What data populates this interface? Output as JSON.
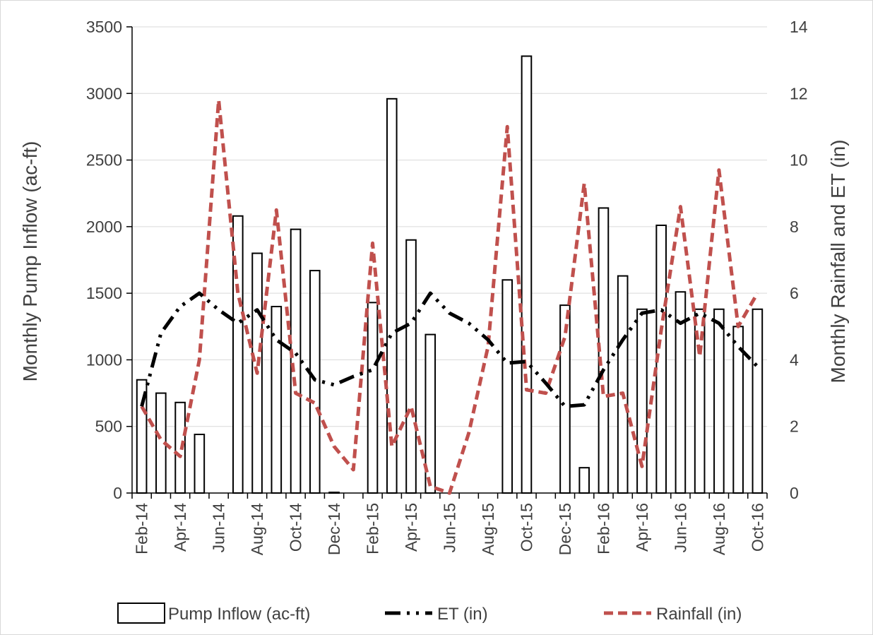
{
  "chart_data": {
    "type": "bar",
    "categories": [
      "Feb-14",
      "Mar-14",
      "Apr-14",
      "May-14",
      "Jun-14",
      "Jul-14",
      "Aug-14",
      "Sep-14",
      "Oct-14",
      "Nov-14",
      "Dec-14",
      "Jan-15",
      "Feb-15",
      "Mar-15",
      "Apr-15",
      "May-15",
      "Jun-15",
      "Jul-15",
      "Aug-15",
      "Sep-15",
      "Oct-15",
      "Nov-15",
      "Dec-15",
      "Jan-16",
      "Feb-16",
      "Mar-16",
      "Apr-16",
      "May-16",
      "Jun-16",
      "Jul-16",
      "Aug-16",
      "Sep-16",
      "Oct-16"
    ],
    "x_tick_labels": [
      "Feb-14",
      "Apr-14",
      "Jun-14",
      "Aug-14",
      "Oct-14",
      "Dec-14",
      "Feb-15",
      "Apr-15",
      "Jun-15",
      "Aug-15",
      "Oct-15",
      "Dec-15",
      "Feb-16",
      "Apr-16",
      "Jun-16",
      "Aug-16",
      "Oct-16"
    ],
    "title": "",
    "ylabel_left": "Monthly Pump Inflow (ac-ft)",
    "ylabel_right": "Monthly Rainfall and ET (in)",
    "ylim_left": [
      0,
      3500
    ],
    "ylim_right": [
      0,
      14
    ],
    "yticks_left": [
      "0",
      "500",
      "1000",
      "1500",
      "2000",
      "2500",
      "3000",
      "3500"
    ],
    "yticks_right": [
      "0",
      "2",
      "4",
      "6",
      "8",
      "10",
      "12",
      "14"
    ],
    "grid": true,
    "legend_position": "bottom",
    "series": [
      {
        "name": "Pump Inflow (ac-ft)",
        "type": "bar",
        "axis": "left",
        "color": "#000000",
        "values": [
          850,
          750,
          680,
          440,
          0,
          2080,
          1800,
          1400,
          1980,
          1670,
          5,
          0,
          1430,
          2960,
          1900,
          1190,
          0,
          0,
          0,
          1600,
          3280,
          0,
          1410,
          190,
          2140,
          1630,
          1380,
          2010,
          1510,
          1380,
          1380,
          1250,
          1380
        ]
      },
      {
        "name": "ET (in)",
        "type": "line",
        "axis": "right",
        "color": "#000000",
        "style": "dash-dot-dot",
        "values": [
          2.6,
          4.8,
          5.6,
          6.0,
          5.5,
          5.1,
          5.5,
          4.6,
          4.2,
          3.4,
          3.25,
          3.5,
          3.7,
          4.8,
          5.1,
          6.0,
          5.4,
          5.1,
          4.6,
          3.9,
          3.95,
          3.3,
          2.6,
          2.65,
          3.7,
          4.6,
          5.4,
          5.5,
          5.1,
          5.4,
          5.1,
          4.4,
          3.8
        ]
      },
      {
        "name": "Rainfall (in)",
        "type": "line",
        "axis": "right",
        "color": "#C0504D",
        "style": "dashed",
        "values": [
          2.6,
          1.6,
          1.1,
          4.0,
          11.8,
          6.0,
          3.6,
          8.5,
          3.0,
          2.7,
          1.4,
          0.7,
          7.5,
          1.4,
          2.6,
          0.2,
          0.0,
          1.8,
          4.4,
          11.0,
          3.1,
          3.0,
          4.7,
          9.3,
          2.9,
          3.0,
          0.8,
          4.9,
          8.6,
          4.1,
          9.7,
          5.0,
          6.0
        ]
      }
    ]
  }
}
